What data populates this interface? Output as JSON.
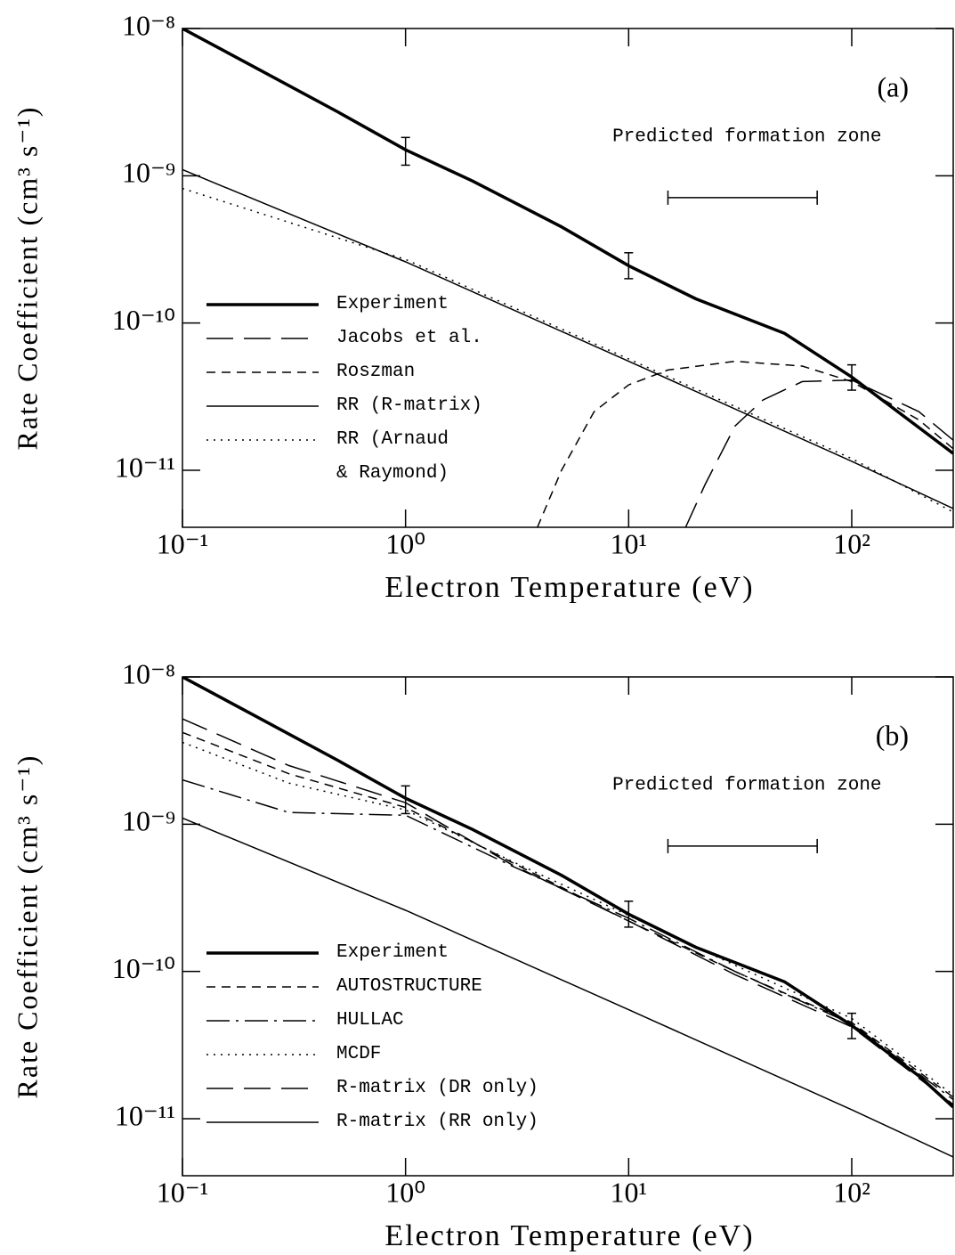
{
  "chart_data": [
    {
      "type": "line",
      "x_label": "Electron Temperature (eV)",
      "y_label": "Rate Coefficient (cm³ s⁻¹)",
      "log_x": true,
      "log_y": true,
      "legend": "lower left",
      "xlim": [
        0.1,
        285
      ],
      "ylim": [
        4.1e-12,
        1e-08
      ],
      "xticks": [
        {
          "value": 0.1,
          "label": "10⁻¹"
        },
        {
          "value": 1,
          "label": "10⁰"
        },
        {
          "value": 10,
          "label": "10¹"
        },
        {
          "value": 100,
          "label": "10²"
        }
      ],
      "yticks": [
        {
          "value": 1e-08,
          "label": "10⁻⁸"
        },
        {
          "value": 1e-09,
          "label": "10⁻⁹"
        },
        {
          "value": 1e-10,
          "label": "10⁻¹⁰"
        },
        {
          "value": 1e-11,
          "label": "10⁻¹¹"
        }
      ],
      "panel_label": "(a)",
      "zone_label": "Predicted formation zone",
      "zone": [
        15,
        70
      ],
      "zone_y": 7.1e-10,
      "error_bars": {
        "x": [
          1,
          10,
          100
        ],
        "low": [
          1.18e-09,
          2e-10,
          3.5e-11
        ],
        "high": [
          1.82e-09,
          3e-10,
          5.2e-11
        ]
      },
      "series": [
        {
          "name": "Experiment",
          "color": "#000000",
          "dash": "solid",
          "width": 3.5,
          "x": [
            0.1,
            0.2,
            0.5,
            1,
            2,
            5,
            10,
            20,
            50,
            100,
            200,
            285
          ],
          "values": [
            1e-08,
            5.7e-09,
            2.7e-09,
            1.5e-09,
            9.2e-10,
            4.5e-10,
            2.45e-10,
            1.46e-10,
            8.5e-11,
            4.3e-11,
            1.95e-11,
            1.3e-11
          ]
        },
        {
          "name": "Jacobs et al.",
          "color": "#000000",
          "dash": "long",
          "width": 1.5,
          "x": [
            18,
            22,
            30,
            40,
            60,
            100,
            200,
            285
          ],
          "values": [
            4.1e-12,
            8e-12,
            2e-11,
            3e-11,
            4e-11,
            4.1e-11,
            2.5e-11,
            1.6e-11
          ]
        },
        {
          "name": "Roszman",
          "color": "#000000",
          "dash": "short",
          "width": 1.5,
          "x": [
            3.9,
            5,
            7,
            10,
            15,
            30,
            60,
            100,
            200,
            285
          ],
          "values": [
            4.1e-12,
            1e-11,
            2.5e-11,
            3.8e-11,
            4.8e-11,
            5.5e-11,
            5.1e-11,
            4e-11,
            2.2e-11,
            1.4e-11
          ]
        },
        {
          "name": "RR (R-matrix)",
          "color": "#000000",
          "dash": "solid",
          "width": 1.5,
          "x": [
            0.1,
            1,
            10,
            100,
            285
          ],
          "values": [
            1.1e-09,
            2.6e-10,
            5.5e-11,
            1.15e-11,
            5.5e-12
          ]
        },
        {
          "name": "RR (Arnaud\n& Raymond)",
          "color": "#000000",
          "dash": "dot",
          "width": 1.5,
          "x": [
            0.1,
            1,
            10,
            100,
            285
          ],
          "values": [
            8.2e-10,
            2.7e-10,
            5.7e-11,
            1.2e-11,
            5.2e-12
          ]
        }
      ]
    },
    {
      "type": "line",
      "x_label": "Electron Temperature (eV)",
      "y_label": "Rate Coefficient (cm³ s⁻¹)",
      "log_x": true,
      "log_y": true,
      "legend": "lower left",
      "xlim": [
        0.1,
        285
      ],
      "ylim": [
        4.1e-12,
        1e-08
      ],
      "xticks": [
        {
          "value": 0.1,
          "label": "10⁻¹"
        },
        {
          "value": 1,
          "label": "10⁰"
        },
        {
          "value": 10,
          "label": "10¹"
        },
        {
          "value": 100,
          "label": "10²"
        }
      ],
      "yticks": [
        {
          "value": 1e-08,
          "label": "10⁻⁸"
        },
        {
          "value": 1e-09,
          "label": "10⁻⁹"
        },
        {
          "value": 1e-10,
          "label": "10⁻¹⁰"
        },
        {
          "value": 1e-11,
          "label": "10⁻¹¹"
        }
      ],
      "panel_label": "(b)",
      "zone_label": "Predicted formation zone",
      "zone": [
        15,
        70
      ],
      "zone_y": 7.1e-10,
      "error_bars": {
        "x": [
          1,
          10,
          100
        ],
        "low": [
          1.18e-09,
          2e-10,
          3.5e-11
        ],
        "high": [
          1.82e-09,
          3e-10,
          5.2e-11
        ]
      },
      "series": [
        {
          "name": "Experiment",
          "color": "#000000",
          "dash": "solid",
          "width": 3.5,
          "x": [
            0.1,
            0.2,
            0.5,
            1,
            2,
            5,
            10,
            20,
            50,
            100,
            200,
            285
          ],
          "values": [
            1e-08,
            5.7e-09,
            2.7e-09,
            1.5e-09,
            9.2e-10,
            4.5e-10,
            2.45e-10,
            1.46e-10,
            8.5e-11,
            4.3e-11,
            1.95e-11,
            1.2e-11
          ]
        },
        {
          "name": "AUTOSTRUCTURE",
          "color": "#000000",
          "dash": "short",
          "width": 1.5,
          "x": [
            0.1,
            0.3,
            1,
            3,
            10,
            30,
            100,
            285
          ],
          "values": [
            4.2e-09,
            2.2e-09,
            1.3e-09,
            5.5e-10,
            2.2e-10,
            1e-10,
            4.5e-11,
            1.4e-11
          ]
        },
        {
          "name": "HULLAC",
          "color": "#000000",
          "dash": "dashdot",
          "width": 1.5,
          "x": [
            0.1,
            0.3,
            1,
            3,
            10,
            30,
            100,
            285
          ],
          "values": [
            2e-09,
            1.2e-09,
            1.15e-09,
            5.2e-10,
            2.3e-10,
            1e-10,
            4.4e-11,
            1.35e-11
          ]
        },
        {
          "name": "MCDF",
          "color": "#000000",
          "dash": "dot",
          "width": 1.5,
          "x": [
            0.1,
            0.3,
            1,
            3,
            10,
            30,
            100,
            285
          ],
          "values": [
            3.6e-09,
            1.9e-09,
            1.25e-09,
            5.6e-10,
            2.4e-10,
            1.1e-10,
            4.8e-11,
            1.45e-11
          ]
        },
        {
          "name": "R-matrix (DR only)",
          "color": "#000000",
          "dash": "long",
          "width": 1.5,
          "x": [
            0.1,
            0.3,
            1,
            3,
            10,
            30,
            100,
            285
          ],
          "values": [
            5.2e-09,
            2.5e-09,
            1.4e-09,
            5.3e-10,
            2.2e-10,
            9.5e-11,
            4.2e-11,
            1.25e-11
          ]
        },
        {
          "name": "R-matrix (RR only)",
          "color": "#000000",
          "dash": "solid",
          "width": 1.5,
          "x": [
            0.1,
            1,
            10,
            100,
            285
          ],
          "values": [
            1.1e-09,
            2.6e-10,
            5.5e-11,
            1.15e-11,
            5.5e-12
          ]
        }
      ]
    }
  ]
}
